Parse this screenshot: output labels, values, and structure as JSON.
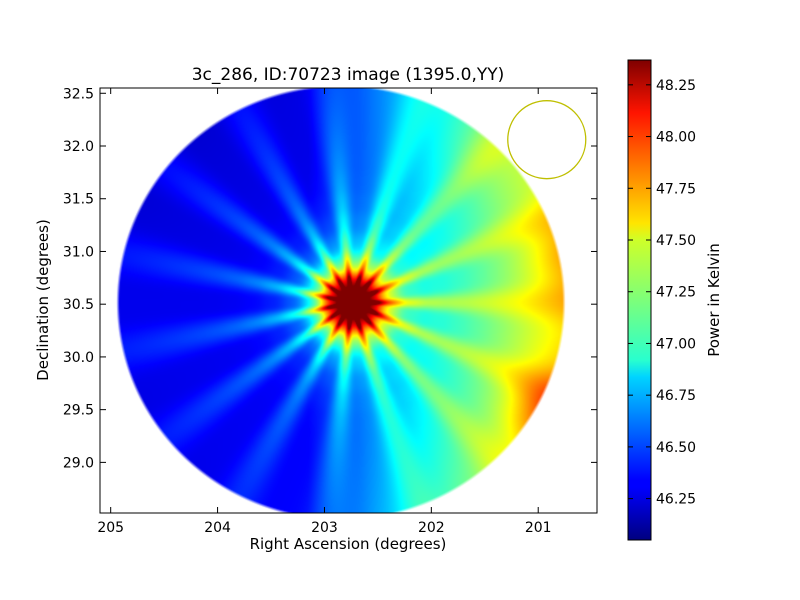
{
  "chart_data": {
    "type": "heatmap",
    "title": "3c_286, ID:70723 image (1395.0,YY)",
    "xlabel": "Right Ascension (degrees)",
    "ylabel": "Declination (degrees)",
    "xlim": [
      205.1,
      200.45
    ],
    "ylim": [
      28.52,
      32.55
    ],
    "x_ticks": [
      205,
      204,
      203,
      202,
      201
    ],
    "x_tick_labels": [
      "205",
      "204",
      "203",
      "202",
      "201"
    ],
    "y_ticks": [
      29.0,
      29.5,
      30.0,
      30.5,
      31.0,
      31.5,
      32.0,
      32.5
    ],
    "y_tick_labels": [
      "29.0",
      "29.5",
      "30.0",
      "30.5",
      "31.0",
      "31.5",
      "32.0",
      "32.5"
    ],
    "colorbar": {
      "label": "Power in Kelvin",
      "colormap": "jet",
      "range": [
        46.05,
        48.37
      ],
      "ticks": [
        46.25,
        46.5,
        46.75,
        47.0,
        47.25,
        47.5,
        47.75,
        48.0,
        48.25
      ],
      "tick_labels": [
        "46.25",
        "46.50",
        "46.75",
        "47.00",
        "47.25",
        "47.50",
        "47.75",
        "48.00",
        "48.25"
      ]
    },
    "map_region": {
      "center_ra": 202.85,
      "center_dec": 30.52,
      "radius_deg": 2.0,
      "background_value": 46.3,
      "east_value": 46.2,
      "west_value": 47.3
    },
    "peak": {
      "ra": 202.75,
      "dec": 30.52,
      "value": 48.3
    },
    "hot_spots": [
      {
        "ra": 200.9,
        "dec": 29.45,
        "value": 47.7
      },
      {
        "ra": 200.7,
        "dec": 31.0,
        "value": 47.5
      },
      {
        "ra": 201.5,
        "dec": 31.9,
        "value": 47.4
      }
    ],
    "marker_circle": {
      "ra": 200.92,
      "dec": 32.06,
      "color": "#bfbf00"
    }
  }
}
